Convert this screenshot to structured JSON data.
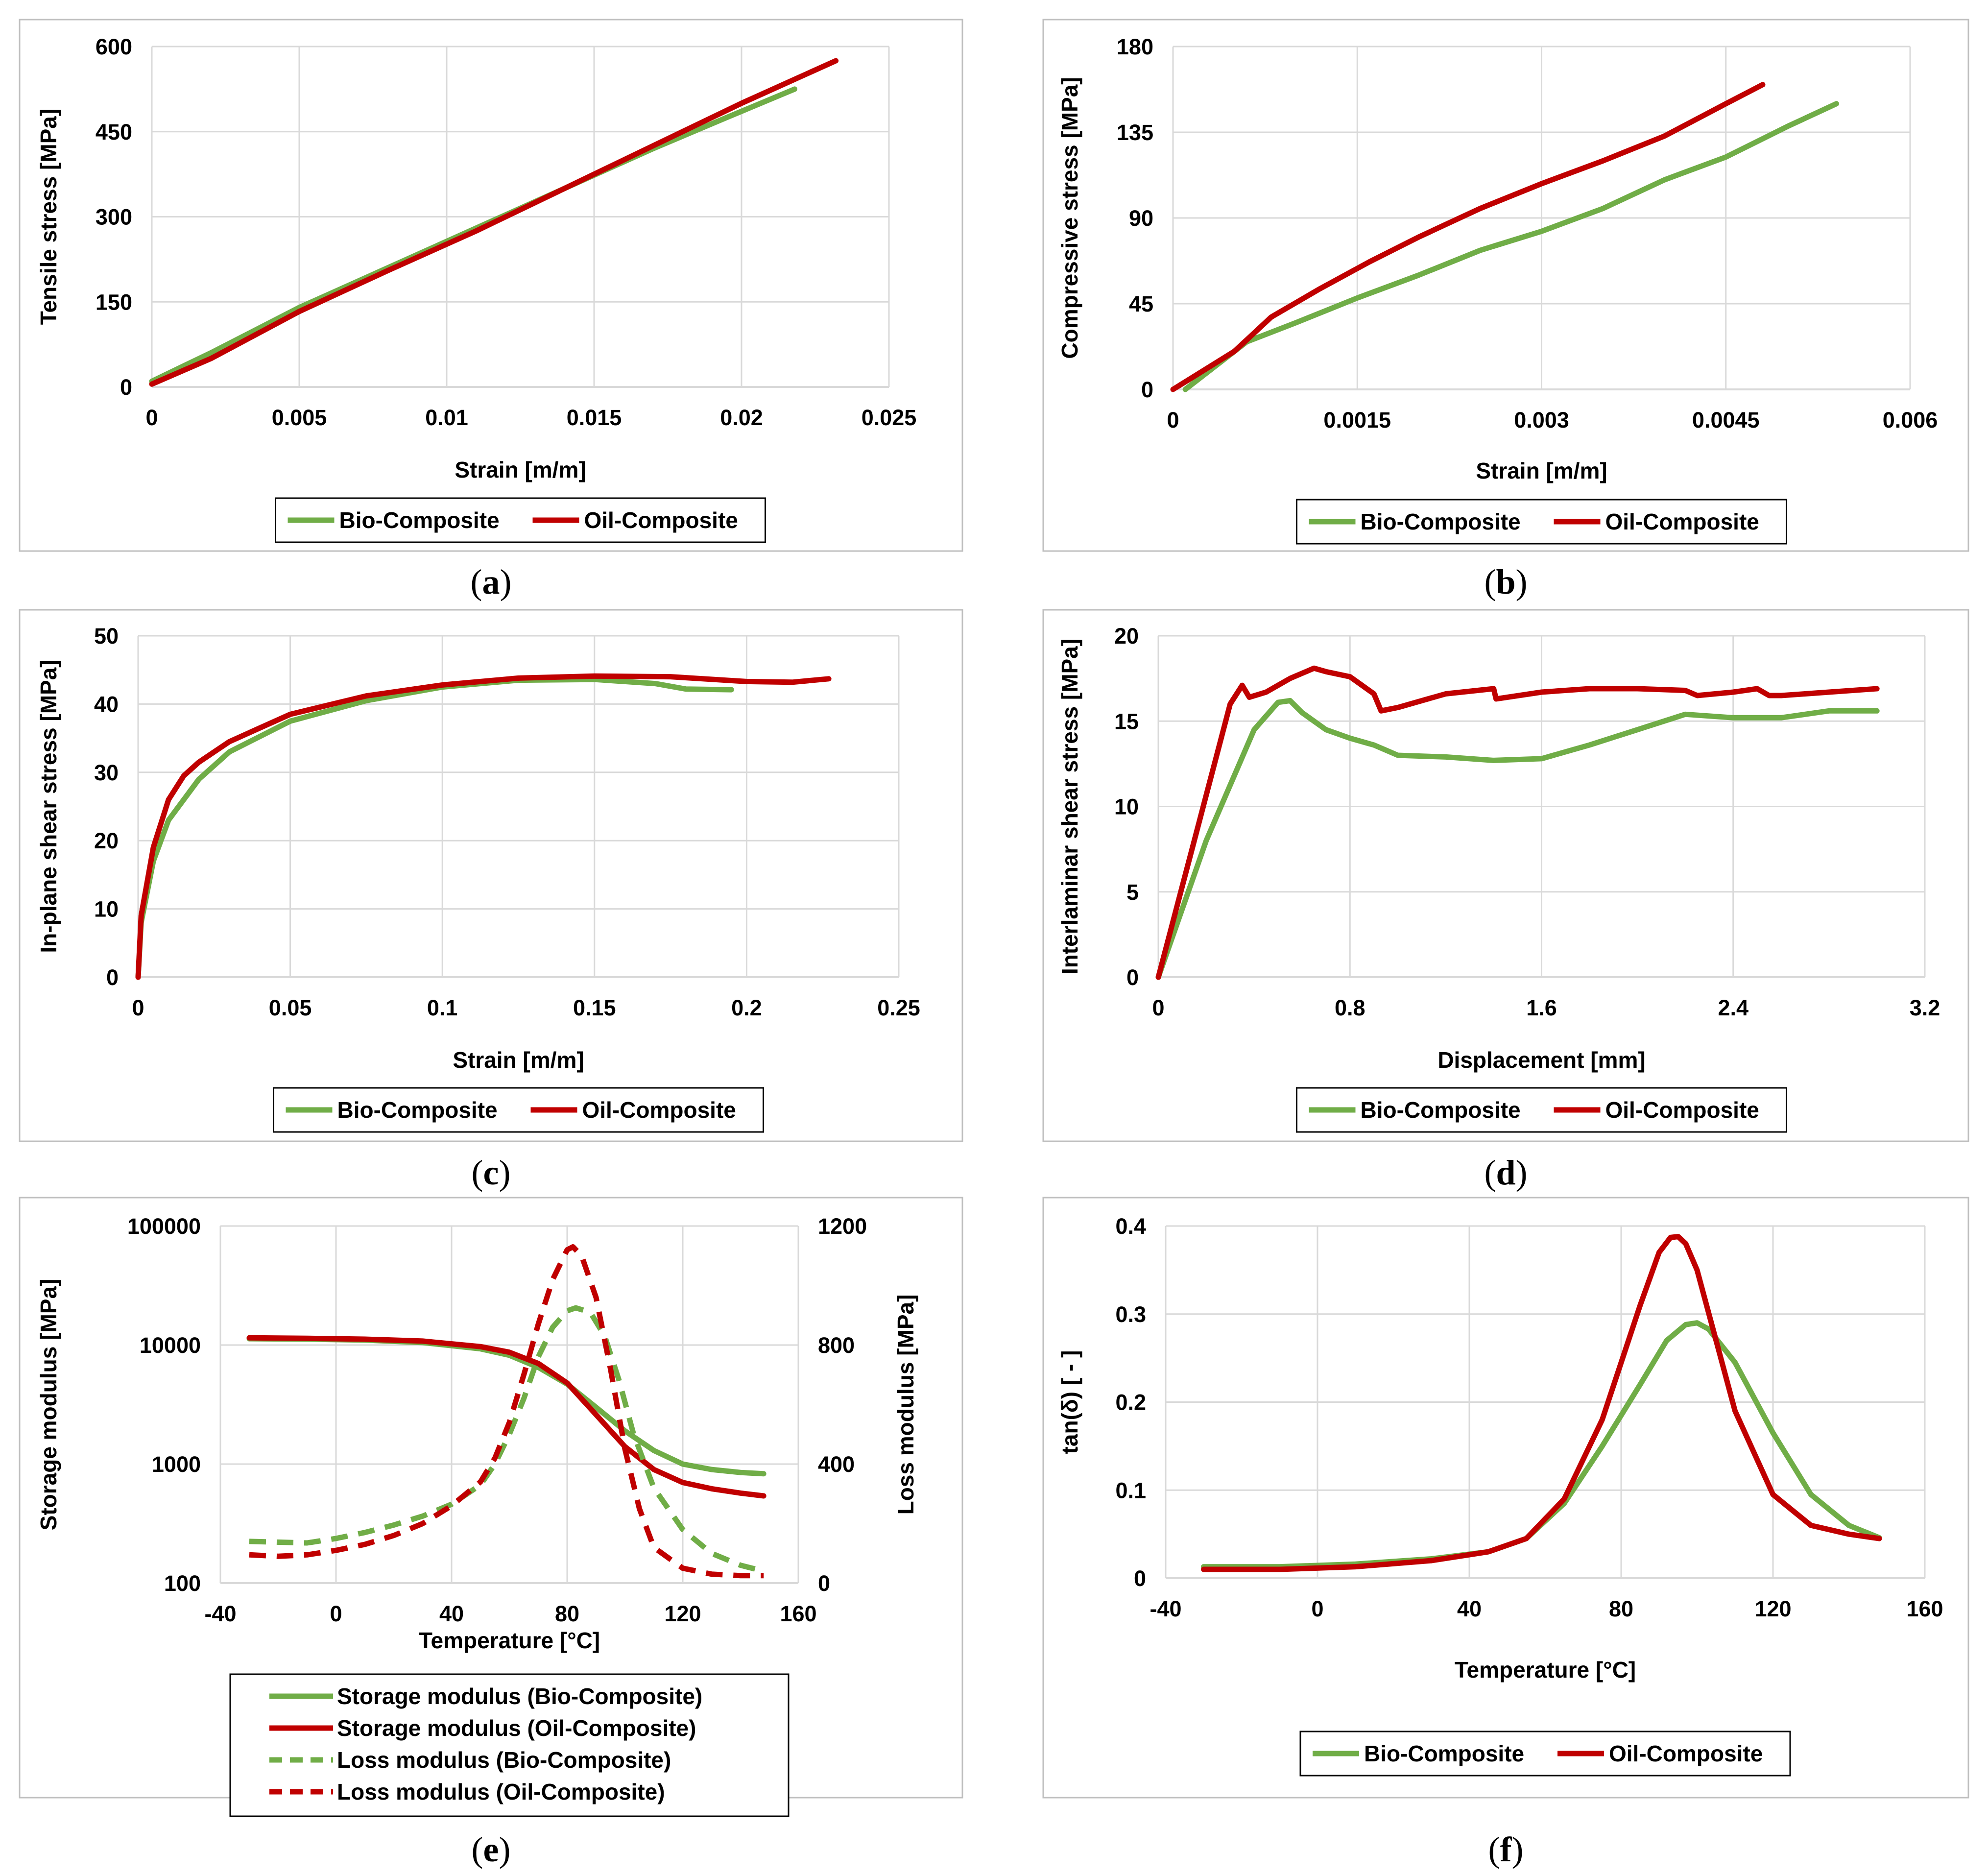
{
  "colors": {
    "bio": "#70AD47",
    "oil": "#C00000",
    "grid": "#D9D9D9",
    "frame": "#BFBFBF"
  },
  "chart_data": [
    {
      "panel": "a",
      "type": "line",
      "caption": {
        "open": "(",
        "letter": "a",
        "close": ")"
      },
      "xlabel": "Strain [m/m]",
      "ylabel": "Tensile stress [MPa]",
      "xlim": [
        0,
        0.025
      ],
      "ylim": [
        0,
        600
      ],
      "xticks": [
        0,
        0.005,
        0.01,
        0.015,
        0.02,
        0.025
      ],
      "xtick_labels": [
        "0",
        "0.005",
        "0.01",
        "0.015",
        "0.02",
        "0.025"
      ],
      "yticks": [
        0,
        150,
        300,
        450,
        600
      ],
      "ytick_labels": [
        "0",
        "150",
        "300",
        "450",
        "600"
      ],
      "legend": [
        "Bio-Composite",
        "Oil-Composite"
      ],
      "series": [
        {
          "name": "Bio-Composite",
          "color": "bio",
          "dashed": false,
          "axis": "left",
          "x": [
            0,
            0.002,
            0.005,
            0.008,
            0.011,
            0.014,
            0.017,
            0.0195,
            0.0218
          ],
          "y": [
            10,
            60,
            140,
            210,
            280,
            350,
            420,
            475,
            525
          ]
        },
        {
          "name": "Oil-Composite",
          "color": "oil",
          "dashed": false,
          "axis": "left",
          "x": [
            0,
            0.002,
            0.005,
            0.008,
            0.011,
            0.014,
            0.017,
            0.02,
            0.0232
          ],
          "y": [
            5,
            50,
            133,
            205,
            275,
            350,
            425,
            500,
            575
          ]
        }
      ]
    },
    {
      "panel": "b",
      "type": "line",
      "caption": {
        "open": "(",
        "letter": "b",
        "close": ")"
      },
      "xlabel": "Strain [m/m]",
      "ylabel": "Compressive stress [MPa]",
      "xlim": [
        0,
        0.006
      ],
      "ylim": [
        0,
        180
      ],
      "xticks": [
        0,
        0.0015,
        0.003,
        0.0045,
        0.006
      ],
      "xtick_labels": [
        "0",
        "0.0015",
        "0.003",
        "0.0045",
        "0.006"
      ],
      "yticks": [
        0,
        45,
        90,
        135,
        180
      ],
      "ytick_labels": [
        "0",
        "45",
        "90",
        "135",
        "180"
      ],
      "legend": [
        "Bio-Composite",
        "Oil-Composite"
      ],
      "series": [
        {
          "name": "Bio-Composite",
          "color": "bio",
          "dashed": false,
          "axis": "left",
          "x": [
            0.0001,
            0.0003,
            0.0006,
            0.001,
            0.0015,
            0.002,
            0.0025,
            0.003,
            0.0035,
            0.004,
            0.0045,
            0.005,
            0.0054
          ],
          "y": [
            0,
            10,
            25,
            35,
            48,
            60,
            73,
            83,
            95,
            110,
            122,
            138,
            150
          ]
        },
        {
          "name": "Oil-Composite",
          "color": "oil",
          "dashed": false,
          "axis": "left",
          "x": [
            0,
            0.0002,
            0.0005,
            0.0008,
            0.0012,
            0.0016,
            0.002,
            0.0025,
            0.003,
            0.0035,
            0.004,
            0.0045,
            0.0048
          ],
          "y": [
            0,
            8,
            20,
            38,
            53,
            67,
            80,
            95,
            108,
            120,
            133,
            150,
            160
          ]
        }
      ]
    },
    {
      "panel": "c",
      "type": "line",
      "caption": {
        "open": "(",
        "letter": "c",
        "close": ")"
      },
      "xlabel": "Strain [m/m]",
      "ylabel": "In-plane shear stress [MPa]",
      "xlim": [
        0,
        0.25
      ],
      "ylim": [
        0,
        50
      ],
      "xticks": [
        0,
        0.05,
        0.1,
        0.15,
        0.2,
        0.25
      ],
      "xtick_labels": [
        "0",
        "0.05",
        "0.1",
        "0.15",
        "0.2",
        "0.25"
      ],
      "yticks": [
        0,
        10,
        20,
        30,
        40,
        50
      ],
      "ytick_labels": [
        "0",
        "10",
        "20",
        "30",
        "40",
        "50"
      ],
      "legend": [
        "Bio-Composite",
        "Oil-Composite"
      ],
      "series": [
        {
          "name": "Bio-Composite",
          "color": "bio",
          "dashed": false,
          "axis": "left",
          "x": [
            0,
            0.001,
            0.005,
            0.01,
            0.02,
            0.03,
            0.05,
            0.075,
            0.1,
            0.125,
            0.15,
            0.17,
            0.18,
            0.195
          ],
          "y": [
            0,
            8,
            17,
            23,
            29,
            33,
            37.5,
            40.5,
            42.5,
            43.5,
            43.6,
            43,
            42.2,
            42.1
          ]
        },
        {
          "name": "Oil-Composite",
          "color": "oil",
          "dashed": false,
          "axis": "left",
          "x": [
            0,
            0.001,
            0.005,
            0.01,
            0.015,
            0.02,
            0.03,
            0.05,
            0.075,
            0.1,
            0.125,
            0.15,
            0.175,
            0.2,
            0.215,
            0.227
          ],
          "y": [
            0,
            9,
            19,
            26,
            29.5,
            31.5,
            34.5,
            38.5,
            41.2,
            42.8,
            43.8,
            44.1,
            44,
            43.3,
            43.2,
            43.7
          ]
        }
      ]
    },
    {
      "panel": "d",
      "type": "line",
      "caption": {
        "open": "(",
        "letter": "d",
        "close": ")"
      },
      "xlabel": "Displacement [mm]",
      "ylabel": "Interlaminar shear stress [MPa]",
      "xlim": [
        0,
        3.2
      ],
      "ylim": [
        0,
        20
      ],
      "xticks": [
        0,
        0.8,
        1.6,
        2.4,
        3.2
      ],
      "xtick_labels": [
        "0",
        "0.8",
        "1.6",
        "2.4",
        "3.2"
      ],
      "yticks": [
        0,
        5,
        10,
        15,
        20
      ],
      "ytick_labels": [
        "0",
        "5",
        "10",
        "15",
        "20"
      ],
      "legend": [
        "Bio-Composite",
        "Oil-Composite"
      ],
      "series": [
        {
          "name": "Bio-Composite",
          "color": "bio",
          "dashed": false,
          "axis": "left",
          "x": [
            0,
            0.2,
            0.4,
            0.5,
            0.55,
            0.6,
            0.7,
            0.8,
            0.9,
            1.0,
            1.2,
            1.4,
            1.6,
            1.8,
            2.0,
            2.2,
            2.4,
            2.6,
            2.8,
            3.0
          ],
          "y": [
            0,
            8,
            14.5,
            16.1,
            16.2,
            15.5,
            14.5,
            14,
            13.6,
            13,
            12.9,
            12.7,
            12.8,
            13.6,
            14.5,
            15.4,
            15.2,
            15.2,
            15.6,
            15.6
          ]
        },
        {
          "name": "Oil-Composite",
          "color": "oil",
          "dashed": false,
          "axis": "left",
          "x": [
            0,
            0.15,
            0.3,
            0.35,
            0.38,
            0.45,
            0.55,
            0.65,
            0.7,
            0.8,
            0.9,
            0.93,
            1.0,
            1.2,
            1.4,
            1.41,
            1.6,
            1.8,
            2.0,
            2.2,
            2.25,
            2.4,
            2.5,
            2.55,
            2.6,
            2.8,
            3.0
          ],
          "y": [
            0,
            8,
            16,
            17.1,
            16.4,
            16.7,
            17.5,
            18.1,
            17.9,
            17.6,
            16.6,
            15.6,
            15.8,
            16.6,
            16.9,
            16.3,
            16.7,
            16.9,
            16.9,
            16.8,
            16.5,
            16.7,
            16.9,
            16.5,
            16.5,
            16.7,
            16.9
          ]
        }
      ]
    },
    {
      "panel": "e",
      "type": "line",
      "caption": {
        "open": "(",
        "letter": "e",
        "close": ")"
      },
      "xlabel": "Temperature [°C]",
      "ylabel": "Storage modulus [MPa]",
      "y2label": "Loss modulus [MPa]",
      "xlim": [
        -40,
        160
      ],
      "ylim": [
        100,
        100000
      ],
      "yscale": "log",
      "y2lim": [
        0,
        1200
      ],
      "xticks": [
        -40,
        0,
        40,
        80,
        120,
        160
      ],
      "xtick_labels": [
        "-40",
        "0",
        "40",
        "80",
        "120",
        "160"
      ],
      "yticks": [
        100,
        1000,
        10000,
        100000
      ],
      "ytick_labels": [
        "100",
        "1000",
        "10000",
        "100000"
      ],
      "y2ticks": [
        0,
        400,
        800,
        1200
      ],
      "y2tick_labels": [
        "0",
        "400",
        "800",
        "1200"
      ],
      "legend": [
        "Storage modulus (Bio-Composite)",
        "Storage modulus (Oil-Composite)",
        "Loss modulus (Bio-Composite)",
        "Loss modulus (Oil-Composite)"
      ],
      "series": [
        {
          "name": "Storage modulus (Bio-Composite)",
          "color": "bio",
          "dashed": false,
          "axis": "left",
          "x": [
            -30,
            -10,
            10,
            30,
            50,
            60,
            70,
            80,
            90,
            100,
            110,
            120,
            130,
            140,
            148
          ],
          "y": [
            11300,
            11200,
            11000,
            10500,
            9300,
            8200,
            6500,
            4700,
            3000,
            1900,
            1300,
            1000,
            900,
            850,
            830
          ]
        },
        {
          "name": "Storage modulus (Oil-Composite)",
          "color": "oil",
          "dashed": false,
          "axis": "left",
          "x": [
            -30,
            -10,
            10,
            30,
            50,
            60,
            70,
            80,
            90,
            100,
            110,
            120,
            130,
            140,
            148
          ],
          "y": [
            11500,
            11400,
            11200,
            10800,
            9700,
            8700,
            7000,
            4800,
            2600,
            1400,
            900,
            700,
            620,
            570,
            540
          ]
        },
        {
          "name": "Loss modulus (Bio-Composite)",
          "color": "bio",
          "dashed": true,
          "axis": "right",
          "x": [
            -30,
            -10,
            0,
            10,
            20,
            30,
            40,
            50,
            55,
            60,
            65,
            70,
            75,
            80,
            83,
            88,
            93,
            98,
            103,
            110,
            120,
            130,
            140,
            148
          ],
          "y": [
            140,
            135,
            150,
            170,
            195,
            225,
            265,
            330,
            400,
            500,
            620,
            760,
            860,
            915,
            925,
            910,
            830,
            680,
            500,
            320,
            180,
            100,
            60,
            40
          ]
        },
        {
          "name": "Loss modulus (Oil-Composite)",
          "color": "oil",
          "dashed": true,
          "axis": "right",
          "x": [
            -30,
            -20,
            -10,
            0,
            10,
            20,
            30,
            40,
            50,
            55,
            60,
            65,
            70,
            75,
            80,
            82,
            85,
            90,
            95,
            100,
            105,
            110,
            120,
            130,
            140,
            148
          ],
          "y": [
            95,
            90,
            95,
            110,
            130,
            160,
            200,
            260,
            340,
            420,
            540,
            700,
            870,
            1020,
            1120,
            1130,
            1100,
            960,
            720,
            450,
            250,
            120,
            50,
            30,
            25,
            25
          ]
        }
      ]
    },
    {
      "panel": "f",
      "type": "line",
      "caption": {
        "open": "(",
        "letter": "f",
        "close": ")"
      },
      "xlabel": "Temperature [°C]",
      "ylabel": "tan(δ) [ - ]",
      "xlim": [
        -40,
        160
      ],
      "ylim": [
        0,
        0.4
      ],
      "xticks": [
        -40,
        0,
        40,
        80,
        120,
        160
      ],
      "xtick_labels": [
        "-40",
        "0",
        "40",
        "80",
        "120",
        "160"
      ],
      "yticks": [
        0,
        0.1,
        0.2,
        0.3,
        0.4
      ],
      "ytick_labels": [
        "0",
        "0.1",
        "0.2",
        "0.3",
        "0.4"
      ],
      "legend": [
        "Bio-Composite",
        "Oil-Composite"
      ],
      "series": [
        {
          "name": "Bio-Composite",
          "color": "bio",
          "dashed": false,
          "axis": "left",
          "x": [
            -30,
            -10,
            10,
            30,
            45,
            55,
            65,
            75,
            85,
            92,
            97,
            100,
            103,
            110,
            120,
            130,
            140,
            148
          ],
          "y": [
            0.013,
            0.013,
            0.016,
            0.022,
            0.03,
            0.045,
            0.085,
            0.15,
            0.22,
            0.27,
            0.288,
            0.29,
            0.283,
            0.245,
            0.165,
            0.095,
            0.06,
            0.046
          ]
        },
        {
          "name": "Oil-Composite",
          "color": "oil",
          "dashed": false,
          "axis": "left",
          "x": [
            -30,
            -10,
            10,
            30,
            45,
            55,
            65,
            75,
            85,
            90,
            93,
            95,
            97,
            100,
            105,
            110,
            120,
            130,
            140,
            148
          ],
          "y": [
            0.01,
            0.01,
            0.013,
            0.02,
            0.03,
            0.045,
            0.09,
            0.18,
            0.31,
            0.37,
            0.387,
            0.388,
            0.38,
            0.35,
            0.27,
            0.19,
            0.095,
            0.06,
            0.05,
            0.045
          ]
        }
      ]
    }
  ]
}
